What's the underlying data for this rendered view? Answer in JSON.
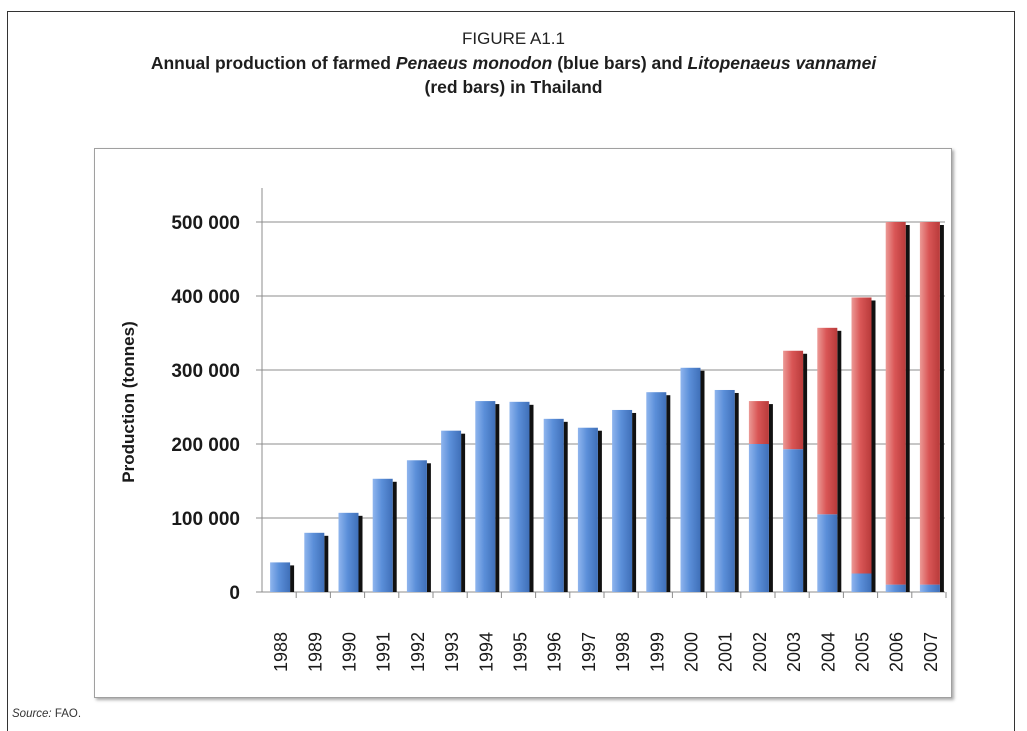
{
  "figure": {
    "label": "FIGURE A1.1",
    "title_part1": "Annual production of farmed ",
    "title_species1": "Penaeus monodon",
    "title_part2": " (blue bars) and ",
    "title_species2": "Litopenaeus vannamei",
    "title_part3": "(red bars) in Thailand"
  },
  "source": {
    "label": "Source:",
    "text": " FAO."
  },
  "colors": {
    "monodon": "#5b8fd9",
    "vannamei": "#d95656",
    "shadow": "#111111",
    "grid": "#8c8c8c"
  },
  "chart_data": {
    "type": "bar",
    "stacked": true,
    "ylabel": "Production (tonnes)",
    "ylim": [
      0,
      500000
    ],
    "yticks": [
      0,
      100000,
      200000,
      300000,
      400000,
      500000
    ],
    "ytick_labels": [
      "0",
      "100 000",
      "200 000",
      "300 000",
      "400 000",
      "500 000"
    ],
    "grid": true,
    "categories": [
      "1988",
      "1989",
      "1990",
      "1991",
      "1992",
      "1993",
      "1994",
      "1995",
      "1996",
      "1997",
      "1998",
      "1999",
      "2000",
      "2001",
      "2002",
      "2003",
      "2004",
      "2005",
      "2006",
      "2007"
    ],
    "series": [
      {
        "key": "monodon",
        "values": [
          40000,
          80000,
          107000,
          153000,
          178000,
          218000,
          258000,
          257000,
          234000,
          222000,
          246000,
          270000,
          303000,
          273000,
          200000,
          193000,
          105000,
          25000,
          10000,
          10000
        ]
      },
      {
        "key": "vannamei",
        "values": [
          0,
          0,
          0,
          0,
          0,
          0,
          0,
          0,
          0,
          0,
          0,
          0,
          0,
          0,
          58000,
          133000,
          252000,
          373000,
          490000,
          490000
        ]
      }
    ]
  }
}
